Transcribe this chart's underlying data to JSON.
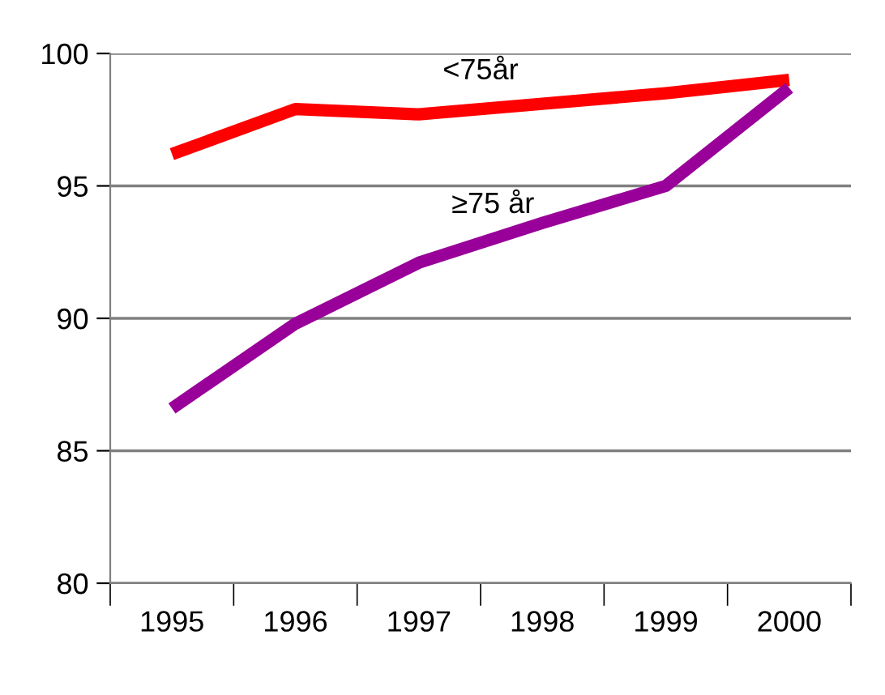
{
  "chart_data": {
    "type": "line",
    "categories": [
      "1995",
      "1996",
      "1997",
      "1998",
      "1999",
      "2000"
    ],
    "series": [
      {
        "name": "<75år",
        "color": "#ff0000",
        "values": [
          96.2,
          97.9,
          97.7,
          98.1,
          98.5,
          99.0
        ]
      },
      {
        "name": "≥75 år",
        "color": "#990099",
        "values": [
          86.6,
          89.8,
          92.1,
          93.6,
          95.0,
          98.7
        ]
      }
    ],
    "ylim": [
      80,
      100
    ],
    "yticks": [
      80,
      85,
      90,
      95,
      100
    ],
    "grid": "y",
    "legend": false,
    "marker": "none",
    "line_style": "solid"
  }
}
